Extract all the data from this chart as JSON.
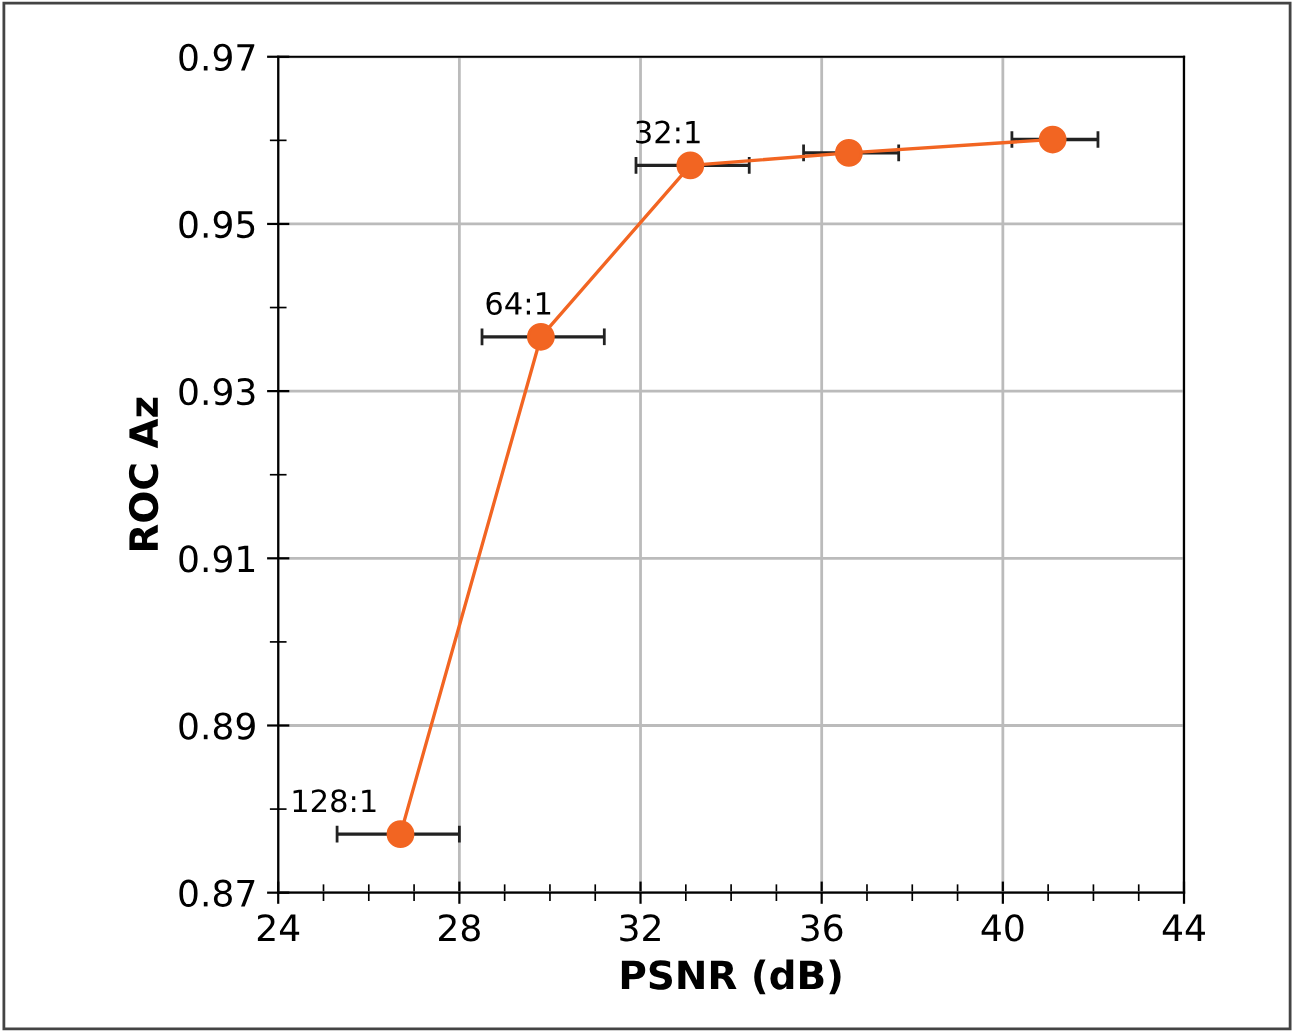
{
  "chart_data": {
    "type": "line",
    "xlabel": "PSNR (dB)",
    "ylabel": "ROC Az",
    "x": [
      26.7,
      29.8,
      33.1,
      36.6,
      41.1
    ],
    "series": [
      {
        "color": "#f26522",
        "values": [
          0.877,
          0.9365,
          0.957,
          0.9585,
          0.9601
        ],
        "xerrors": [
          [
            25.3,
            28.0
          ],
          [
            28.5,
            31.2
          ],
          [
            31.9,
            34.4
          ],
          [
            35.6,
            37.7
          ],
          [
            40.2,
            42.1
          ]
        ]
      }
    ],
    "marker": "circle",
    "line_style": "solid",
    "grid": true,
    "legend": false,
    "xlim": [
      24,
      44
    ],
    "xticks": [
      24,
      28,
      32,
      36,
      40,
      44
    ],
    "ylim": [
      0.87,
      0.97
    ],
    "yticks": [
      0.87,
      0.89,
      0.91,
      0.93,
      0.95,
      0.97
    ],
    "annotations": [
      {
        "text": "128:1",
        "x": 26.7,
        "y": 0.877
      },
      {
        "text": "64:1",
        "x": 29.8,
        "y": 0.9365
      },
      {
        "text": "32:1",
        "x": 33.1,
        "y": 0.957
      }
    ]
  }
}
